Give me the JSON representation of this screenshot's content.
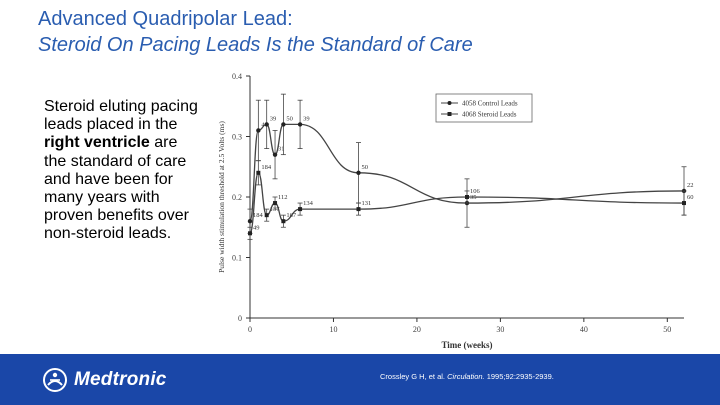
{
  "slide": {
    "title_line1": "Advanced Quadripolar Lead:",
    "title_line2": "Steroid On Pacing Leads Is the Standard of Care",
    "bullet_part1": "Steroid eluting pacing leads placed in the ",
    "bullet_bold": "right ventricle",
    "bullet_part2": " are the standard of care and have been for many years with proven benefits over non-steroid leads.",
    "brand": "Medtronic",
    "citation_authors": "Crossley G H, et al. ",
    "citation_journal": "Circulation.",
    "citation_rest": " 1995;92:2935-2939."
  },
  "colors": {
    "title": "#2a5db0",
    "footer": "#1a47a8"
  },
  "icons": [
    "medtronic-logo-icon"
  ],
  "chart_data": {
    "type": "line",
    "xlabel": "Time (weeks)",
    "ylabel": "Pulse width stimulation threshold at 2.5 Volts (ms)",
    "xlim": [
      0,
      52
    ],
    "ylim": [
      0,
      0.4
    ],
    "x_ticks": [
      "0",
      "10",
      "20",
      "30",
      "40",
      "50"
    ],
    "y_ticks": [
      "0",
      "0.1",
      "0.2",
      "0.3",
      "0.4"
    ],
    "legend_position": "top-right",
    "grid": false,
    "series": [
      {
        "name": "4058 Control Leads",
        "points": [
          {
            "x": 0,
            "y": 0.16,
            "label": "184",
            "err": 0.02
          },
          {
            "x": 1,
            "y": 0.31,
            "label": "44",
            "err": 0.05
          },
          {
            "x": 2,
            "y": 0.32,
            "label": "39",
            "err": 0.04
          },
          {
            "x": 3,
            "y": 0.27,
            "label": "31",
            "err": 0.04
          },
          {
            "x": 4,
            "y": 0.32,
            "label": "50",
            "err": 0.05
          },
          {
            "x": 6,
            "y": 0.32,
            "label": "39",
            "err": 0.04
          },
          {
            "x": 13,
            "y": 0.24,
            "label": "50",
            "err": 0.05
          },
          {
            "x": 26,
            "y": 0.19,
            "label": "35",
            "err": 0.04
          },
          {
            "x": 52,
            "y": 0.21,
            "label": "22",
            "err": 0.04
          }
        ]
      },
      {
        "name": "4068 Steroid Leads",
        "points": [
          {
            "x": 0,
            "y": 0.14,
            "label": "49",
            "err": 0.01
          },
          {
            "x": 1,
            "y": 0.24,
            "label": "184",
            "err": 0.02
          },
          {
            "x": 2,
            "y": 0.17,
            "label": "137",
            "err": 0.01
          },
          {
            "x": 3,
            "y": 0.19,
            "label": "112",
            "err": 0.01
          },
          {
            "x": 4,
            "y": 0.16,
            "label": "167",
            "err": 0.01
          },
          {
            "x": 6,
            "y": 0.18,
            "label": "134",
            "err": 0.01
          },
          {
            "x": 13,
            "y": 0.18,
            "label": "131",
            "err": 0.01
          },
          {
            "x": 26,
            "y": 0.2,
            "label": "106",
            "err": 0.01
          },
          {
            "x": 52,
            "y": 0.19,
            "label": "60",
            "err": 0.02
          }
        ]
      }
    ]
  }
}
